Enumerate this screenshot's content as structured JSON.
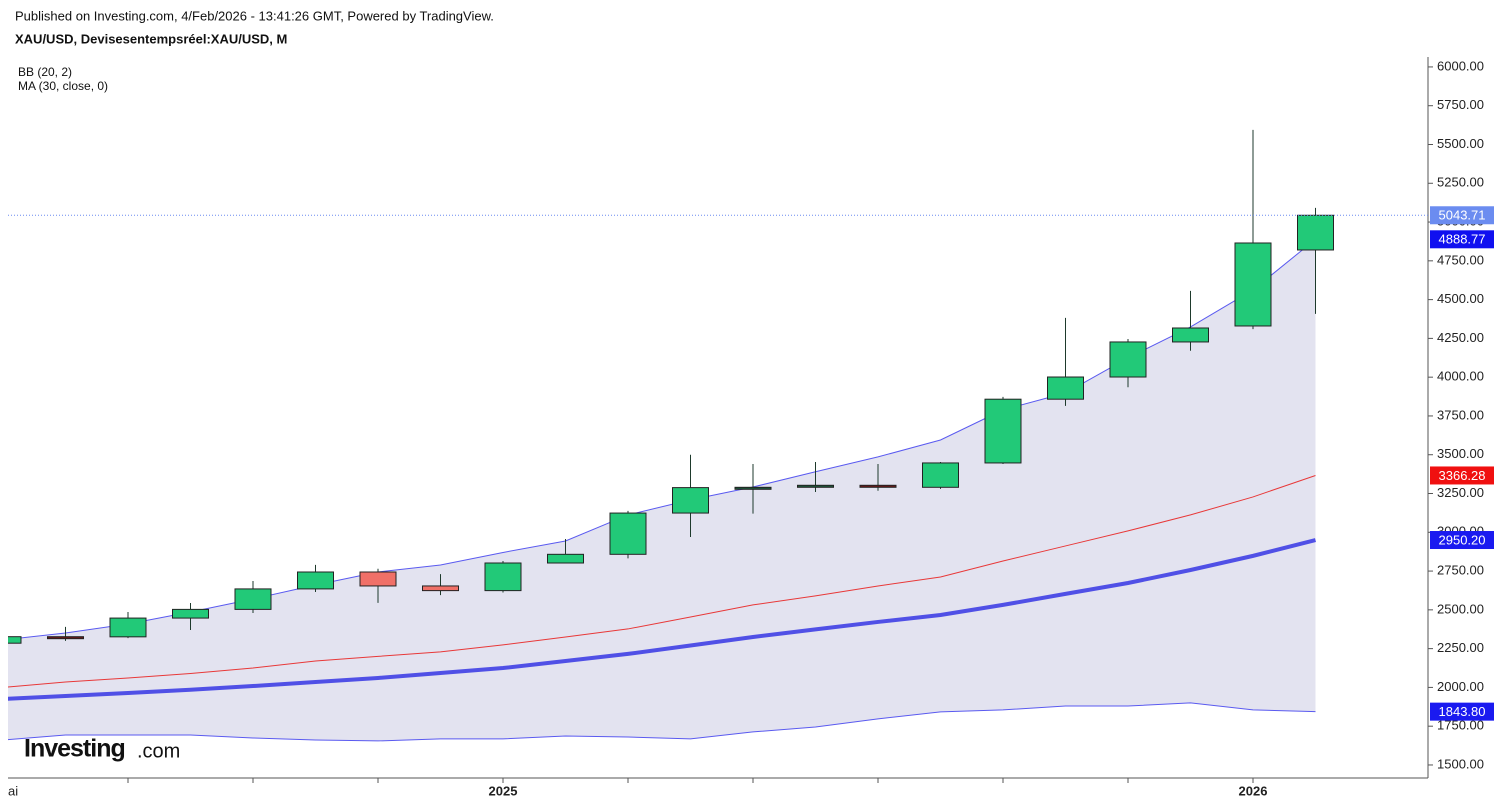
{
  "chart_data": {
    "type": "candlestick",
    "title": "XAU/USD, Devisesentempsréel:XAU/USD, M",
    "subtitle": "Published on Investing.com, 4/Feb/2026 - 13:41:26 GMT, Powered by TradingView.",
    "logo": {
      "name": "Investing",
      "suffix": ".com"
    },
    "categories": [
      "ai",
      null,
      null,
      null,
      null,
      null,
      null,
      null,
      "2025",
      null,
      null,
      null,
      null,
      null,
      null,
      null,
      null,
      null,
      null,
      null,
      "2026",
      null
    ],
    "open": [
      2285,
      2327,
      2326,
      2447,
      2503,
      2635,
      2744,
      2654,
      2624,
      2802,
      2858,
      3124,
      3288,
      3290,
      3303,
      3290,
      3447,
      3858,
      4001,
      4227,
      4330,
      4820
    ],
    "high": [
      2340,
      2390,
      2486,
      2544,
      2686,
      2790,
      2765,
      2730,
      2815,
      2957,
      3138,
      3500,
      3440,
      3453,
      3440,
      3453,
      3873,
      4382,
      4246,
      4556,
      5594,
      5091
    ],
    "low": [
      2280,
      2300,
      2318,
      2370,
      2480,
      2615,
      2545,
      2595,
      2612,
      2833,
      2832,
      2970,
      3120,
      3260,
      3268,
      3280,
      3440,
      3815,
      3935,
      4170,
      4310,
      4408
    ],
    "close": [
      2327,
      2326,
      2447,
      2503,
      2635,
      2744,
      2654,
      2624,
      2802,
      2858,
      3124,
      3288,
      3290,
      3303,
      3290,
      3447,
      3858,
      4001,
      4227,
      4317,
      4865,
      5043.71
    ],
    "up_color": "#22c978",
    "down_color": "#f07068",
    "close_label_color": "#6b8cf0",
    "bands": {
      "name": "BB (20, 2)",
      "upper": [
        2306,
        2351,
        2409,
        2486,
        2570,
        2660,
        2744,
        2789,
        2870,
        2944,
        3112,
        3209,
        3292,
        3390,
        3486,
        3595,
        3789,
        3898,
        4124,
        4324,
        4562,
        4888.77
      ],
      "basis": [
        2000,
        2035,
        2061,
        2090,
        2125,
        2170,
        2200,
        2229,
        2274,
        2325,
        2377,
        2454,
        2532,
        2590,
        2654,
        2712,
        2815,
        2912,
        3009,
        3112,
        3228,
        3366.28
      ],
      "lower": [
        1661,
        1693,
        1693,
        1693,
        1674,
        1661,
        1655,
        1668,
        1668,
        1687,
        1680,
        1668,
        1713,
        1745,
        1797,
        1842,
        1855,
        1880,
        1880,
        1900,
        1855,
        1843.8
      ],
      "lower_last_label": "1843.80",
      "line_color": "#5a5af0",
      "basis_color": "#e83838",
      "fill": "#e3e3f0"
    },
    "ma": {
      "name": "MA (30, close, 0)",
      "values": [
        1925,
        1945,
        1964,
        1985,
        2009,
        2035,
        2061,
        2093,
        2125,
        2170,
        2216,
        2270,
        2325,
        2374,
        2422,
        2467,
        2532,
        2603,
        2673,
        2757,
        2848,
        2950.2
      ],
      "last_label": "2950.20",
      "color": "#5050e6"
    },
    "ylim": [
      1416,
      6064
    ],
    "yticks": [
      {
        "value": 1500,
        "label": "1500.00"
      },
      {
        "value": 1750,
        "label": "1750.00"
      },
      {
        "value": 2000,
        "label": "2000.00"
      },
      {
        "value": 2250,
        "label": "2250.00"
      },
      {
        "value": 2500,
        "label": "2500.00"
      },
      {
        "value": 2750,
        "label": "2750.00"
      },
      {
        "value": 3000,
        "label": "3000.00"
      },
      {
        "value": 3250,
        "label": "3250.00"
      },
      {
        "value": 3500,
        "label": "3500.00"
      },
      {
        "value": 3750,
        "label": "3750.00"
      },
      {
        "value": 4000,
        "label": "4000.00"
      },
      {
        "value": 4250,
        "label": "4250.00"
      },
      {
        "value": 4500,
        "label": "4500.00"
      },
      {
        "value": 4750,
        "label": "4750.00"
      },
      {
        "value": 5000,
        "label": "5000.00"
      },
      {
        "value": 5250,
        "label": "5250.00"
      },
      {
        "value": 5500,
        "label": "5500.00"
      },
      {
        "value": 5750,
        "label": "5750.00"
      },
      {
        "value": 6000,
        "label": "6000.00"
      }
    ]
  }
}
